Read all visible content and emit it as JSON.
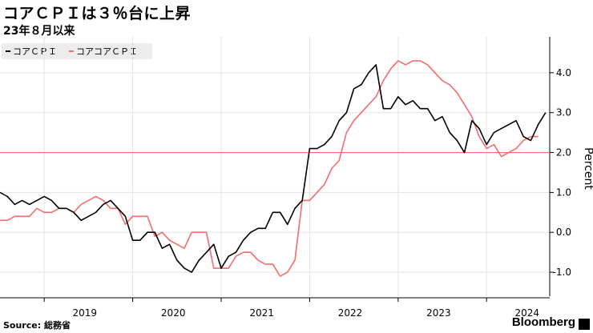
{
  "header": {
    "title": "コアＣＰＩは３％台に上昇",
    "subtitle": "23年８月以来"
  },
  "footer": {
    "source": "Source: 総務省",
    "brand": "Bloomberg"
  },
  "colors": {
    "series1": "#000000",
    "series2": "#f26d6d",
    "reference": "#f26d6d",
    "grid": "#e3e3e3"
  },
  "chart_data": {
    "type": "line",
    "title": "コアＣＰＩは３％台に上昇",
    "subtitle": "23年８月以来",
    "ylabel": "Percent",
    "xlabel": "",
    "ylim": [
      -1.6,
      4.9
    ],
    "yticks": [
      -1.0,
      0.0,
      1.0,
      2.0,
      3.0,
      4.0
    ],
    "ytick_labels": [
      "-1.0",
      "0.0",
      "1.0",
      "2.0",
      "3.0",
      "4.0"
    ],
    "xticks": [
      "2019",
      "2020",
      "2021",
      "2022",
      "2023",
      "2024"
    ],
    "x_start": "2018-07",
    "reference_line": 2.0,
    "grid": true,
    "legend_position": "top-left",
    "series": [
      {
        "name": "コアＣＰＩ",
        "color": "#000000",
        "values": [
          1.0,
          0.9,
          0.7,
          0.8,
          0.7,
          0.8,
          0.9,
          0.8,
          0.6,
          0.6,
          0.5,
          0.3,
          0.4,
          0.5,
          0.7,
          0.8,
          0.6,
          0.4,
          -0.2,
          -0.2,
          0.0,
          0.0,
          -0.4,
          -0.3,
          -0.7,
          -0.9,
          -1.0,
          -0.7,
          -0.5,
          -0.3,
          -0.9,
          -0.6,
          -0.5,
          -0.2,
          0.0,
          0.1,
          0.1,
          0.5,
          0.5,
          0.2,
          0.6,
          0.8,
          2.1,
          2.1,
          2.2,
          2.4,
          2.8,
          3.0,
          3.6,
          3.7,
          4.0,
          4.2,
          3.1,
          3.1,
          3.4,
          3.2,
          3.3,
          3.1,
          3.1,
          2.8,
          2.9,
          2.5,
          2.3,
          2.0,
          2.8,
          2.6,
          2.2,
          2.5,
          2.6,
          2.7,
          2.8,
          2.4,
          2.3,
          2.7,
          3.0
        ]
      },
      {
        "name": "コアコアＣＰＩ",
        "color": "#f26d6d",
        "values": [
          0.3,
          0.3,
          0.4,
          0.4,
          0.4,
          0.6,
          0.5,
          0.5,
          0.6,
          0.6,
          0.5,
          0.7,
          0.8,
          0.9,
          0.8,
          0.6,
          0.6,
          0.2,
          0.4,
          0.4,
          0.4,
          -0.1,
          0.0,
          -0.2,
          -0.3,
          -0.4,
          0.0,
          0.0,
          0.0,
          -0.9,
          -0.9,
          -0.9,
          -0.6,
          -0.5,
          -0.5,
          -0.7,
          -0.8,
          -0.8,
          -1.1,
          -1.0,
          -0.7,
          0.8,
          0.8,
          1.0,
          1.2,
          1.6,
          1.8,
          2.5,
          2.8,
          3.0,
          3.2,
          3.4,
          3.8,
          4.1,
          4.3,
          4.2,
          4.3,
          4.3,
          4.2,
          4.0,
          3.8,
          3.7,
          3.5,
          3.2,
          2.9,
          2.4,
          2.1,
          2.2,
          1.9,
          2.0,
          2.1,
          2.3,
          2.4,
          2.4
        ]
      }
    ]
  }
}
